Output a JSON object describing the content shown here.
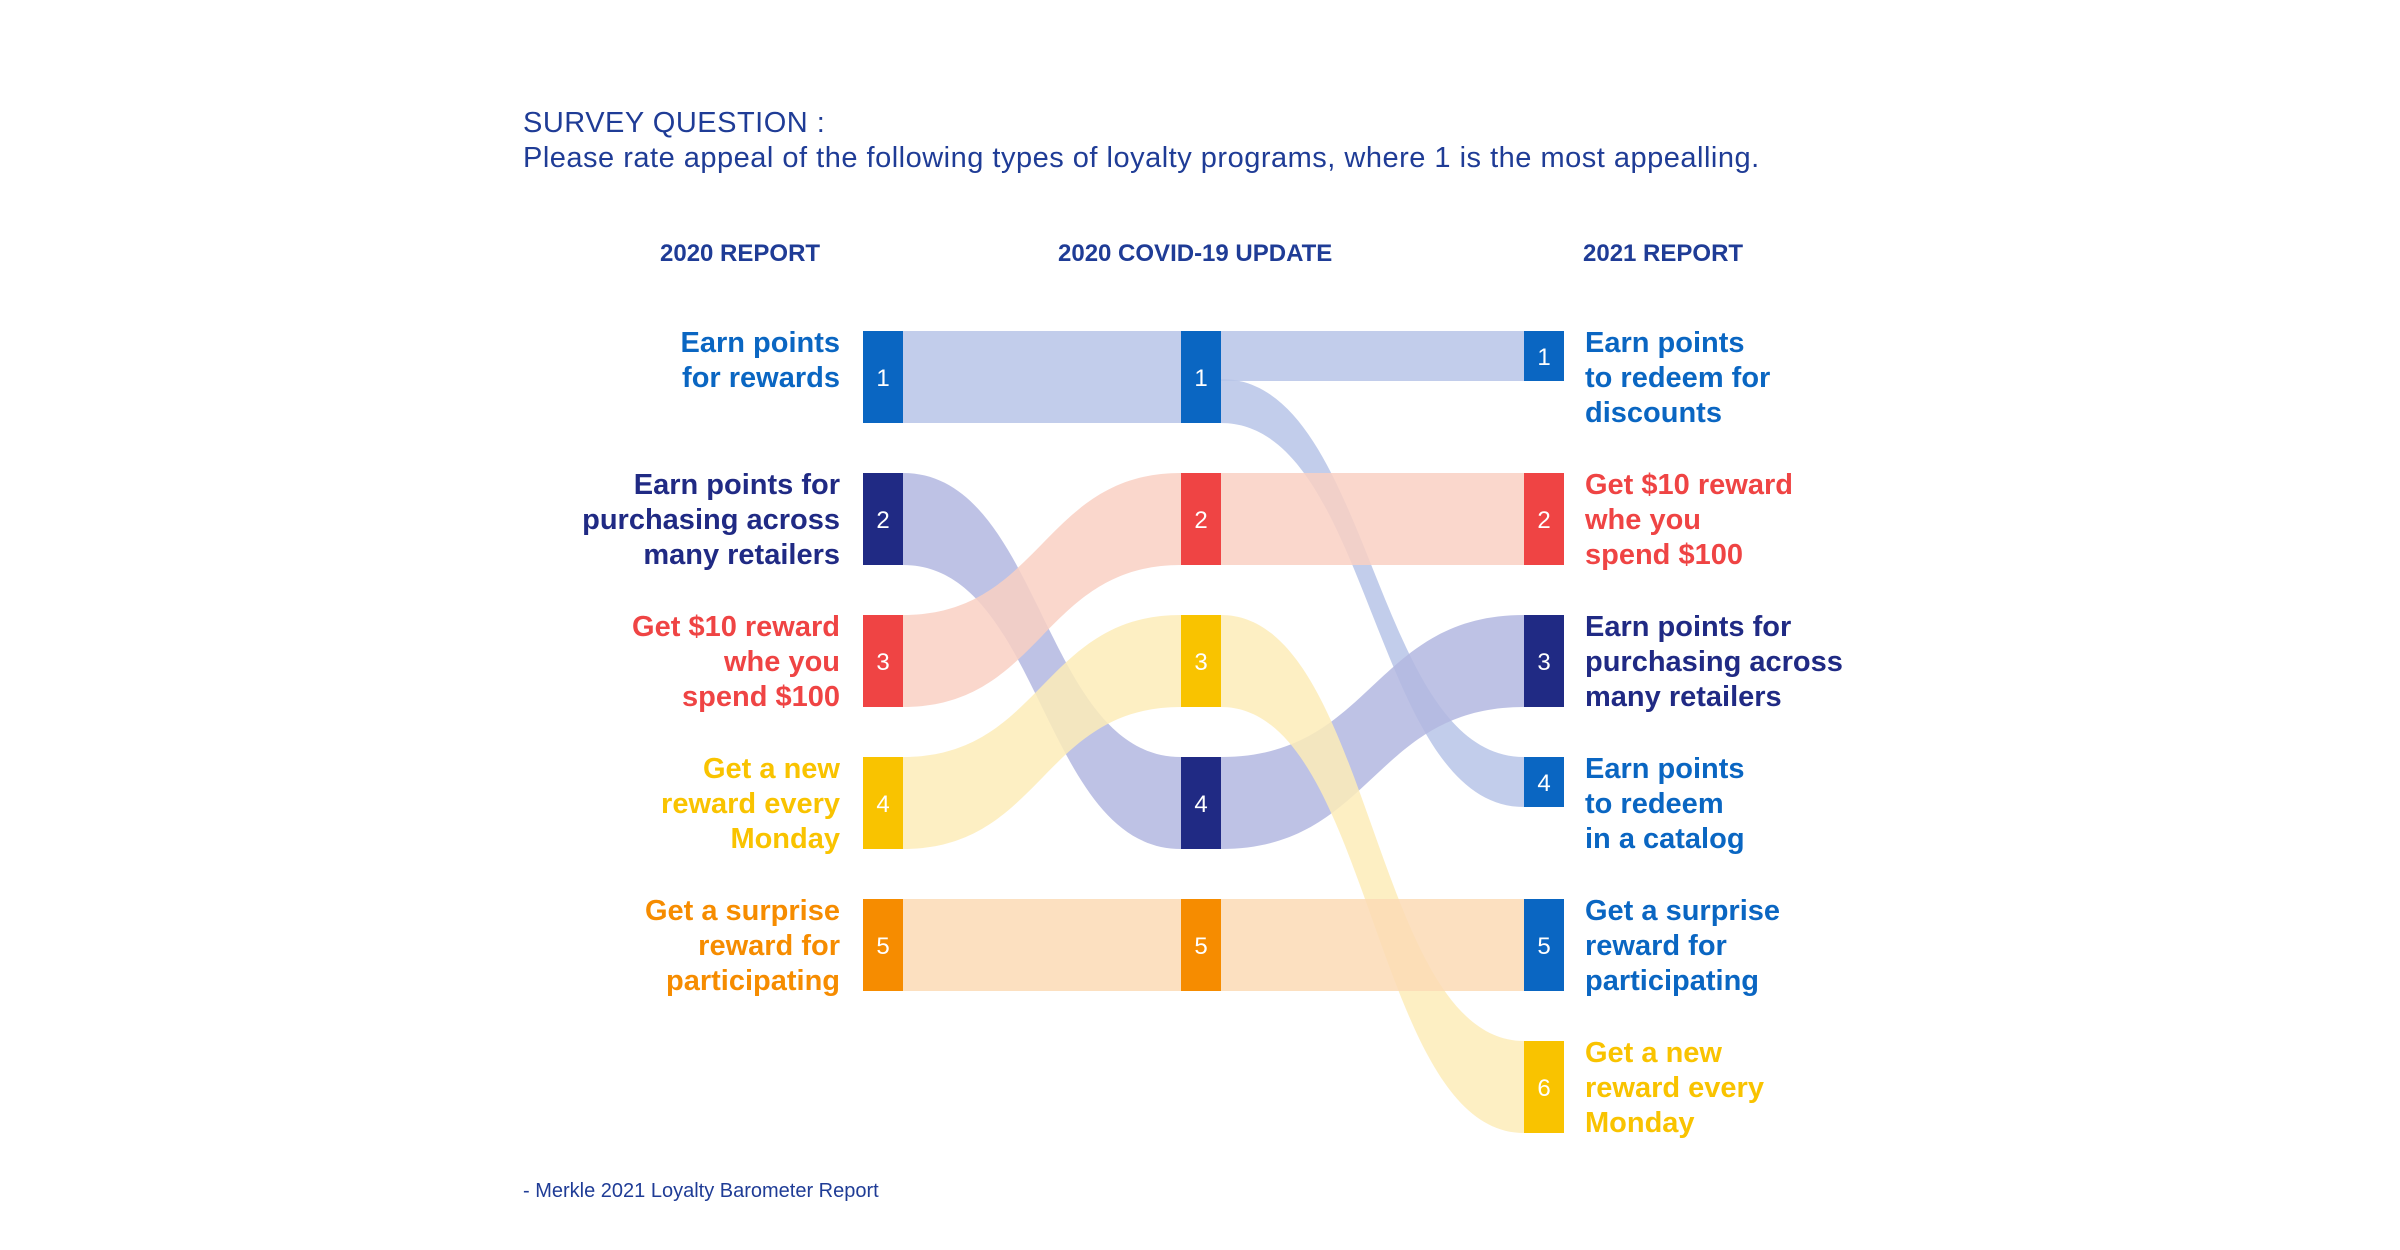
{
  "header": {
    "survey_label": "SURVEY QUESTION :",
    "question": "Please rate appeal of the following types of loyalty programs, where 1 is the most appealling."
  },
  "columns": {
    "left": "2020 REPORT",
    "middle": "2020 COVID-19 UPDATE",
    "right": "2021 REPORT"
  },
  "colors": {
    "blue": "#0a66c2",
    "navy": "#202a84",
    "red": "#ef4444",
    "yellow": "#f9c300",
    "orange": "#f68c00",
    "light_blue": "#b7c4e8",
    "light_navy": "#b3b7e0",
    "light_red": "#f9d0c3",
    "light_yellow": "#fdecb8",
    "light_orange": "#fbdab5",
    "title": "#1f3c96"
  },
  "left_items": [
    {
      "rank": "1",
      "lines": [
        "Earn points",
        "for rewards"
      ],
      "color": "blue"
    },
    {
      "rank": "2",
      "lines": [
        "Earn points for",
        "purchasing across",
        "many retailers"
      ],
      "color": "navy"
    },
    {
      "rank": "3",
      "lines": [
        "Get $10 reward",
        "whe you",
        "spend $100"
      ],
      "color": "red"
    },
    {
      "rank": "4",
      "lines": [
        "Get a new",
        "reward every",
        "Monday"
      ],
      "color": "yellow"
    },
    {
      "rank": "5",
      "lines": [
        "Get a surprise",
        "reward for",
        "participating"
      ],
      "color": "orange"
    }
  ],
  "middle_items": [
    {
      "rank": "1",
      "color": "blue"
    },
    {
      "rank": "2",
      "color": "red"
    },
    {
      "rank": "3",
      "color": "yellow"
    },
    {
      "rank": "4",
      "color": "navy"
    },
    {
      "rank": "5",
      "color": "orange"
    }
  ],
  "right_items": [
    {
      "rank": "1",
      "lines": [
        "Earn points",
        "to redeem for",
        "discounts"
      ],
      "color": "blue"
    },
    {
      "rank": "2",
      "lines": [
        "Get $10 reward",
        "whe you",
        "spend $100"
      ],
      "color": "red"
    },
    {
      "rank": "3",
      "lines": [
        "Earn points for",
        "purchasing across",
        "many retailers"
      ],
      "color": "navy"
    },
    {
      "rank": "4",
      "lines": [
        "Earn points",
        "to redeem",
        "in a catalog"
      ],
      "color": "blue"
    },
    {
      "rank": "5",
      "lines": [
        "Get a surprise",
        "reward for",
        "participating"
      ],
      "color": "blue"
    },
    {
      "rank": "6",
      "lines": [
        "Get a new",
        "reward every",
        "Monday"
      ],
      "color": "yellow"
    }
  ],
  "flows_left_to_middle": [
    {
      "from": 1,
      "to": 1,
      "color": "light_blue"
    },
    {
      "from": 2,
      "to": 4,
      "color": "light_navy"
    },
    {
      "from": 3,
      "to": 2,
      "color": "light_red"
    },
    {
      "from": 4,
      "to": 3,
      "color": "light_yellow"
    },
    {
      "from": 5,
      "to": 5,
      "color": "light_orange"
    }
  ],
  "flows_middle_to_right": [
    {
      "from": 1,
      "to": 1,
      "color": "light_blue"
    },
    {
      "from": 1,
      "to": 4,
      "color": "light_blue"
    },
    {
      "from": 2,
      "to": 2,
      "color": "light_red"
    },
    {
      "from": 4,
      "to": 3,
      "color": "light_navy"
    },
    {
      "from": 3,
      "to": 6,
      "color": "light_yellow"
    },
    {
      "from": 5,
      "to": 5,
      "color": "light_orange"
    }
  ],
  "source": "- Merkle 2021 Loyalty Barometer Report"
}
